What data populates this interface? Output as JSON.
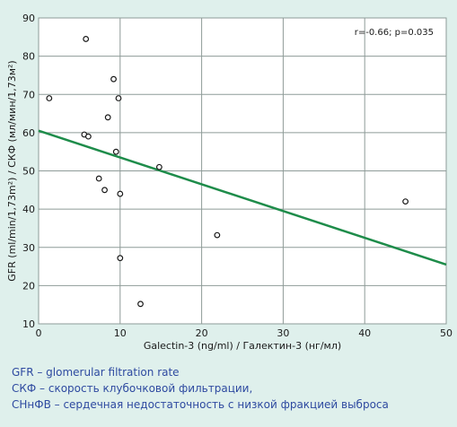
{
  "chart_data": {
    "type": "scatter",
    "xlabel": "Galectin-3 (ng/ml) / Галектин-3 (нг/мл)",
    "ylabel": "GFR (ml/min/1,73m²) / СКФ (мл/мин/1,73м²)",
    "xlim": [
      0,
      50
    ],
    "ylim": [
      10,
      90
    ],
    "x_ticks": [
      "0",
      "10",
      "20",
      "30",
      "40",
      "50"
    ],
    "y_ticks": [
      "10",
      "20",
      "30",
      "40",
      "50",
      "60",
      "70",
      "80",
      "90"
    ],
    "grid": true,
    "annotation": "r=-0.66; p=0.035",
    "points": [
      {
        "x": 5.8,
        "y": 84.5
      },
      {
        "x": 1.3,
        "y": 69
      },
      {
        "x": 9.2,
        "y": 74
      },
      {
        "x": 9.8,
        "y": 69
      },
      {
        "x": 8.5,
        "y": 64
      },
      {
        "x": 5.6,
        "y": 59.5
      },
      {
        "x": 6.1,
        "y": 59
      },
      {
        "x": 9.5,
        "y": 55
      },
      {
        "x": 14.8,
        "y": 51
      },
      {
        "x": 7.4,
        "y": 48
      },
      {
        "x": 8.1,
        "y": 45
      },
      {
        "x": 10.0,
        "y": 44
      },
      {
        "x": 45.0,
        "y": 42
      },
      {
        "x": 21.9,
        "y": 33.2
      },
      {
        "x": 10.0,
        "y": 27.2
      },
      {
        "x": 12.5,
        "y": 15.2
      }
    ],
    "trendline": {
      "x": [
        0,
        50
      ],
      "y": [
        60.5,
        25.5
      ]
    },
    "colors": {
      "trendline": "#1e8c4a",
      "grid": "#8e9b98",
      "points": "#1a1a1a",
      "plot_background": "#ffffff",
      "figure_background": "#dff0ec"
    }
  },
  "footnotes": [
    "GFR – glomerular filtration rate",
    "СКФ – скорость клубочковой фильтрации,",
    "СНнФВ – сердечная недостаточность с низкой фракцией выброса"
  ]
}
